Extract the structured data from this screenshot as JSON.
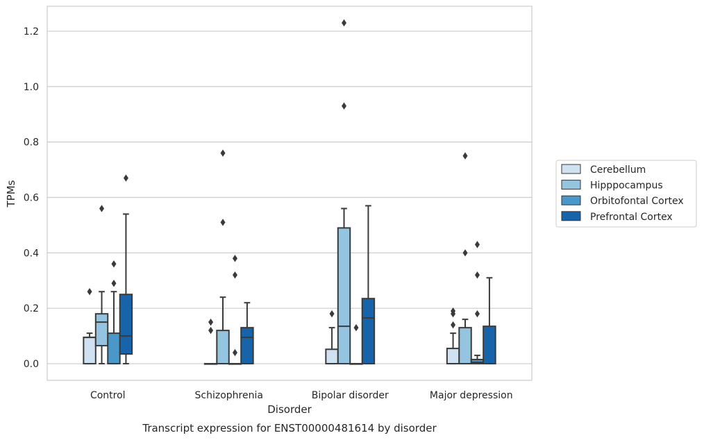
{
  "chart_data": {
    "type": "box",
    "caption": "Transcript expression for ENST00000481614 by disorder",
    "xlabel": "Disorder",
    "ylabel": "TPMs",
    "ylim": [
      -0.06,
      1.29
    ],
    "yticks": [
      0.0,
      0.2,
      0.4,
      0.6,
      0.8,
      1.0,
      1.2
    ],
    "ytick_labels": [
      "0.0",
      "0.2",
      "0.4",
      "0.6",
      "0.8",
      "1.0",
      "1.2"
    ],
    "categories": [
      "Control",
      "Schizophrenia",
      "Bipolar disorder",
      "Major depression"
    ],
    "grid": true,
    "legend_position": "right",
    "series": [
      {
        "name": "Cerebellum",
        "color": "#d0e1f2",
        "boxes": [
          {
            "q1": 0.0,
            "median": 0.095,
            "q3": 0.095,
            "whisker_low": 0.0,
            "whisker_high": 0.11,
            "outliers": [
              0.26
            ]
          },
          {
            "q1": 0.0,
            "median": 0.0,
            "q3": 0.0,
            "whisker_low": 0.0,
            "whisker_high": 0.0,
            "outliers": [
              0.12,
              0.15
            ]
          },
          {
            "q1": 0.0,
            "median": 0.0,
            "q3": 0.052,
            "whisker_low": 0.0,
            "whisker_high": 0.13,
            "outliers": [
              0.18
            ]
          },
          {
            "q1": 0.0,
            "median": 0.0,
            "q3": 0.055,
            "whisker_low": 0.0,
            "whisker_high": 0.11,
            "outliers": [
              0.14,
              0.18,
              0.19
            ]
          }
        ]
      },
      {
        "name": "Hipppocampus",
        "color": "#94c4df",
        "boxes": [
          {
            "q1": 0.065,
            "median": 0.15,
            "q3": 0.18,
            "whisker_low": 0.0,
            "whisker_high": 0.26,
            "outliers": [
              0.56
            ]
          },
          {
            "q1": 0.0,
            "median": 0.0,
            "q3": 0.12,
            "whisker_low": 0.0,
            "whisker_high": 0.24,
            "outliers": [
              0.51,
              0.76
            ]
          },
          {
            "q1": 0.0,
            "median": 0.135,
            "q3": 0.49,
            "whisker_low": 0.0,
            "whisker_high": 0.56,
            "outliers": [
              0.93,
              1.23
            ]
          },
          {
            "q1": 0.0,
            "median": 0.0,
            "q3": 0.13,
            "whisker_low": 0.0,
            "whisker_high": 0.16,
            "outliers": [
              0.4,
              0.75
            ]
          }
        ]
      },
      {
        "name": "Orbitofontal Cortex",
        "color": "#4a98c9",
        "boxes": [
          {
            "q1": 0.0,
            "median": 0.0,
            "q3": 0.11,
            "whisker_low": 0.0,
            "whisker_high": 0.26,
            "outliers": [
              0.29,
              0.36
            ]
          },
          {
            "q1": 0.0,
            "median": 0.0,
            "q3": 0.0,
            "whisker_low": 0.0,
            "whisker_high": 0.0,
            "outliers": [
              0.04,
              0.32,
              0.38
            ]
          },
          {
            "q1": 0.0,
            "median": 0.0,
            "q3": 0.0,
            "whisker_low": 0.0,
            "whisker_high": 0.0,
            "outliers": [
              0.13
            ]
          },
          {
            "q1": 0.0,
            "median": 0.005,
            "q3": 0.015,
            "whisker_low": 0.0,
            "whisker_high": 0.03,
            "outliers": [
              0.18,
              0.32,
              0.43
            ]
          }
        ]
      },
      {
        "name": "Prefrontal Cortex",
        "color": "#1764ab",
        "boxes": [
          {
            "q1": 0.035,
            "median": 0.1,
            "q3": 0.25,
            "whisker_low": 0.0,
            "whisker_high": 0.54,
            "outliers": [
              0.67
            ]
          },
          {
            "q1": 0.0,
            "median": 0.095,
            "q3": 0.13,
            "whisker_low": 0.0,
            "whisker_high": 0.22,
            "outliers": []
          },
          {
            "q1": 0.0,
            "median": 0.165,
            "q3": 0.235,
            "whisker_low": 0.0,
            "whisker_high": 0.57,
            "outliers": []
          },
          {
            "q1": 0.0,
            "median": 0.0,
            "q3": 0.135,
            "whisker_low": 0.0,
            "whisker_high": 0.31,
            "outliers": []
          }
        ]
      }
    ]
  }
}
